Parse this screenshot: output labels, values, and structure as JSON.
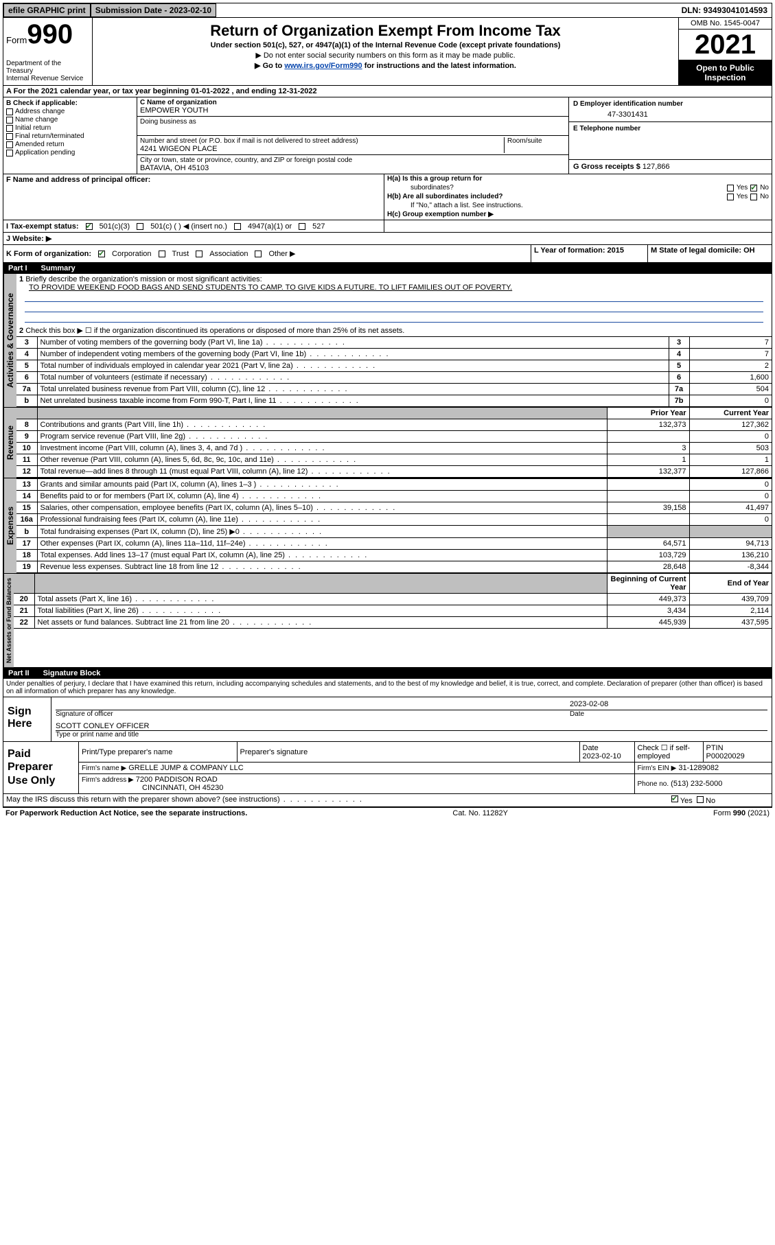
{
  "top": {
    "efile": "efile GRAPHIC print",
    "submission_label": "Submission Date - 2023-02-10",
    "dln": "DLN: 93493041014593"
  },
  "header": {
    "form_word": "Form",
    "form_number": "990",
    "title": "Return of Organization Exempt From Income Tax",
    "sub1": "Under section 501(c), 527, or 4947(a)(1) of the Internal Revenue Code (except private foundations)",
    "sub2": "▶ Do not enter social security numbers on this form as it may be made public.",
    "sub3_pre": "▶ Go to ",
    "sub3_link": "www.irs.gov/Form990",
    "sub3_post": " for instructions and the latest information.",
    "dept": "Department of the Treasury",
    "irs": "Internal Revenue Service",
    "omb": "OMB No. 1545-0047",
    "year": "2021",
    "inspection": "Open to Public Inspection"
  },
  "line_a": "A For the 2021 calendar year, or tax year beginning 01-01-2022   , and ending 12-31-2022",
  "b": {
    "label": "B Check if applicable:",
    "items": [
      "Address change",
      "Name change",
      "Initial return",
      "Final return/terminated",
      "Amended return",
      "Application pending"
    ]
  },
  "c": {
    "name_label": "C Name of organization",
    "name": "EMPOWER YOUTH",
    "dba_label": "Doing business as",
    "addr_label": "Number and street (or P.O. box if mail is not delivered to street address)",
    "room_label": "Room/suite",
    "addr": "4241 WIGEON PLACE",
    "city_label": "City or town, state or province, country, and ZIP or foreign postal code",
    "city": "BATAVIA, OH  45103"
  },
  "d": {
    "label": "D Employer identification number",
    "value": "47-3301431"
  },
  "e": {
    "label": "E Telephone number",
    "value": ""
  },
  "g": {
    "label": "G Gross receipts $",
    "value": "127,866"
  },
  "f": {
    "label": "F  Name and address of principal officer:"
  },
  "h": {
    "a": "H(a)  Is this a group return for",
    "a2": "subordinates?",
    "b": "H(b)  Are all subordinates included?",
    "b_note": "If \"No,\" attach a list. See instructions.",
    "c": "H(c)  Group exemption number ▶",
    "yes": "Yes",
    "no": "No"
  },
  "i": {
    "label": "I  Tax-exempt status:",
    "opts": [
      "501(c)(3)",
      "501(c) (  ) ◀ (insert no.)",
      "4947(a)(1) or",
      "527"
    ]
  },
  "j": {
    "label": "J  Website: ▶"
  },
  "k": {
    "label": "K Form of organization:",
    "opts": [
      "Corporation",
      "Trust",
      "Association",
      "Other ▶"
    ]
  },
  "l": {
    "label": "L Year of formation: 2015"
  },
  "m": {
    "label": "M State of legal domicile: OH"
  },
  "part1": {
    "label": "Part I",
    "title": "Summary"
  },
  "summary": {
    "q1": "Briefly describe the organization's mission or most significant activities:",
    "mission": "TO PROVIDE WEEKEND FOOD BAGS AND SEND STUDENTS TO CAMP. TO GIVE KIDS A FUTURE. TO LIFT FAMILIES OUT OF POVERTY.",
    "q2": "Check this box ▶ ☐  if the organization discontinued its operations or disposed of more than 25% of its net assets.",
    "rows_gov": [
      {
        "n": "3",
        "t": "Number of voting members of the governing body (Part VI, line 1a)",
        "lbl": "3",
        "v": "7"
      },
      {
        "n": "4",
        "t": "Number of independent voting members of the governing body (Part VI, line 1b)",
        "lbl": "4",
        "v": "7"
      },
      {
        "n": "5",
        "t": "Total number of individuals employed in calendar year 2021 (Part V, line 2a)",
        "lbl": "5",
        "v": "2"
      },
      {
        "n": "6",
        "t": "Total number of volunteers (estimate if necessary)",
        "lbl": "6",
        "v": "1,600"
      },
      {
        "n": "7a",
        "t": "Total unrelated business revenue from Part VIII, column (C), line 12",
        "lbl": "7a",
        "v": "504"
      },
      {
        "n": "b",
        "t": "Net unrelated business taxable income from Form 990-T, Part I, line 11",
        "lbl": "7b",
        "v": "0"
      }
    ],
    "col_headers": {
      "prior": "Prior Year",
      "current": "Current Year"
    },
    "revenue": [
      {
        "n": "8",
        "t": "Contributions and grants (Part VIII, line 1h)",
        "p": "132,373",
        "c": "127,362"
      },
      {
        "n": "9",
        "t": "Program service revenue (Part VIII, line 2g)",
        "p": "",
        "c": "0"
      },
      {
        "n": "10",
        "t": "Investment income (Part VIII, column (A), lines 3, 4, and 7d )",
        "p": "3",
        "c": "503"
      },
      {
        "n": "11",
        "t": "Other revenue (Part VIII, column (A), lines 5, 6d, 8c, 9c, 10c, and 11e)",
        "p": "1",
        "c": "1"
      },
      {
        "n": "12",
        "t": "Total revenue—add lines 8 through 11 (must equal Part VIII, column (A), line 12)",
        "p": "132,377",
        "c": "127,866"
      }
    ],
    "expenses": [
      {
        "n": "13",
        "t": "Grants and similar amounts paid (Part IX, column (A), lines 1–3 )",
        "p": "",
        "c": "0"
      },
      {
        "n": "14",
        "t": "Benefits paid to or for members (Part IX, column (A), line 4)",
        "p": "",
        "c": "0"
      },
      {
        "n": "15",
        "t": "Salaries, other compensation, employee benefits (Part IX, column (A), lines 5–10)",
        "p": "39,158",
        "c": "41,497"
      },
      {
        "n": "16a",
        "t": "Professional fundraising fees (Part IX, column (A), line 11e)",
        "p": "",
        "c": "0"
      },
      {
        "n": "b",
        "t": "Total fundraising expenses (Part IX, column (D), line 25) ▶0",
        "p": "__shade__",
        "c": "__shade__"
      },
      {
        "n": "17",
        "t": "Other expenses (Part IX, column (A), lines 11a–11d, 11f–24e)",
        "p": "64,571",
        "c": "94,713"
      },
      {
        "n": "18",
        "t": "Total expenses. Add lines 13–17 (must equal Part IX, column (A), line 25)",
        "p": "103,729",
        "c": "136,210"
      },
      {
        "n": "19",
        "t": "Revenue less expenses. Subtract line 18 from line 12",
        "p": "28,648",
        "c": "-8,344"
      }
    ],
    "net_headers": {
      "beg": "Beginning of Current Year",
      "end": "End of Year"
    },
    "net": [
      {
        "n": "20",
        "t": "Total assets (Part X, line 16)",
        "p": "449,373",
        "c": "439,709"
      },
      {
        "n": "21",
        "t": "Total liabilities (Part X, line 26)",
        "p": "3,434",
        "c": "2,114"
      },
      {
        "n": "22",
        "t": "Net assets or fund balances. Subtract line 21 from line 20",
        "p": "445,939",
        "c": "437,595"
      }
    ],
    "tabs": {
      "gov": "Activities & Governance",
      "rev": "Revenue",
      "exp": "Expenses",
      "net": "Net Assets or Fund Balances"
    }
  },
  "part2": {
    "label": "Part II",
    "title": "Signature Block"
  },
  "penalty": "Under penalties of perjury, I declare that I have examined this return, including accompanying schedules and statements, and to the best of my knowledge and belief, it is true, correct, and complete. Declaration of preparer (other than officer) is based on all information of which preparer has any knowledge.",
  "sign": {
    "here": "Sign Here",
    "sig_officer": "Signature of officer",
    "date": "Date",
    "date_val": "2023-02-08",
    "name_line": "SCOTT CONLEY  OFFICER",
    "name_label": "Type or print name and title"
  },
  "paid": {
    "label": "Paid Preparer Use Only",
    "h": [
      "Print/Type preparer's name",
      "Preparer's signature",
      "Date",
      "",
      "PTIN"
    ],
    "date": "2023-02-10",
    "check_label": "Check ☐ if self-employed",
    "ptin": "P00020029",
    "firm_name_l": "Firm's name   ▶",
    "firm_name": "GRELLE JUMP & COMPANY LLC",
    "firm_ein_l": "Firm's EIN ▶",
    "firm_ein": "31-1289082",
    "firm_addr_l": "Firm's address ▶",
    "firm_addr1": "7200 PADDISON ROAD",
    "firm_addr2": "CINCINNATI, OH  45230",
    "phone_l": "Phone no.",
    "phone": "(513) 232-5000"
  },
  "may": {
    "q": "May the IRS discuss this return with the preparer shown above? (see instructions)",
    "yes": "Yes",
    "no": "No"
  },
  "footer": {
    "left": "For Paperwork Reduction Act Notice, see the separate instructions.",
    "mid": "Cat. No. 11282Y",
    "right": "Form 990 (2021)"
  }
}
